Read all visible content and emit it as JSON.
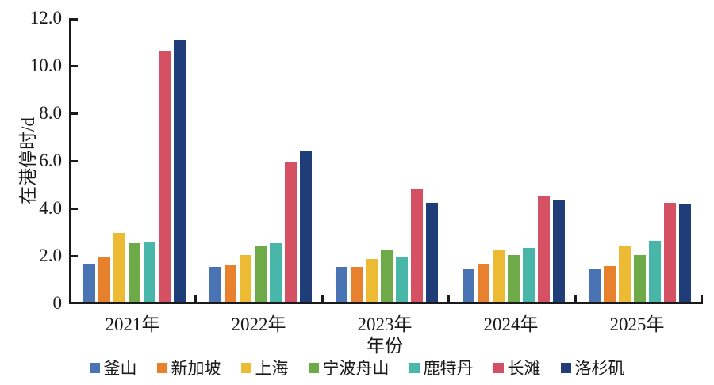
{
  "chart": {
    "y_axis_title": "在港停时/d",
    "x_axis_title": "年份",
    "y_ticks": [
      "12.0",
      "10.0",
      "8.0",
      "6.0",
      "4.0",
      "2.0",
      "0"
    ]
  },
  "chart_data": {
    "type": "bar",
    "title": "",
    "xlabel": "年份",
    "ylabel": "在港停时/d",
    "ylim": [
      0,
      12
    ],
    "y_tick_step": 2.0,
    "grid": false,
    "legend_position": "bottom",
    "categories": [
      "2021年",
      "2022年",
      "2023年",
      "2024年",
      "2025年"
    ],
    "series": [
      {
        "name": "釜山",
        "color": "#4a73b4",
        "values": [
          1.65,
          1.5,
          1.5,
          1.45,
          1.45
        ]
      },
      {
        "name": "新加坡",
        "color": "#e8812e",
        "values": [
          1.9,
          1.6,
          1.5,
          1.65,
          1.55
        ]
      },
      {
        "name": "上海",
        "color": "#ecba33",
        "values": [
          2.95,
          2.0,
          1.85,
          2.25,
          2.4
        ]
      },
      {
        "name": "宁波舟山",
        "color": "#6eab48",
        "values": [
          2.5,
          2.4,
          2.2,
          2.0,
          2.0
        ]
      },
      {
        "name": "鹿特丹",
        "color": "#48b6a8",
        "values": [
          2.55,
          2.5,
          1.9,
          2.3,
          2.6
        ]
      },
      {
        "name": "长滩",
        "color": "#d65064",
        "values": [
          10.6,
          5.95,
          4.8,
          4.5,
          4.2
        ]
      },
      {
        "name": "洛杉矶",
        "color": "#1f3d78",
        "values": [
          11.1,
          6.4,
          4.2,
          4.3,
          4.15
        ]
      }
    ]
  }
}
